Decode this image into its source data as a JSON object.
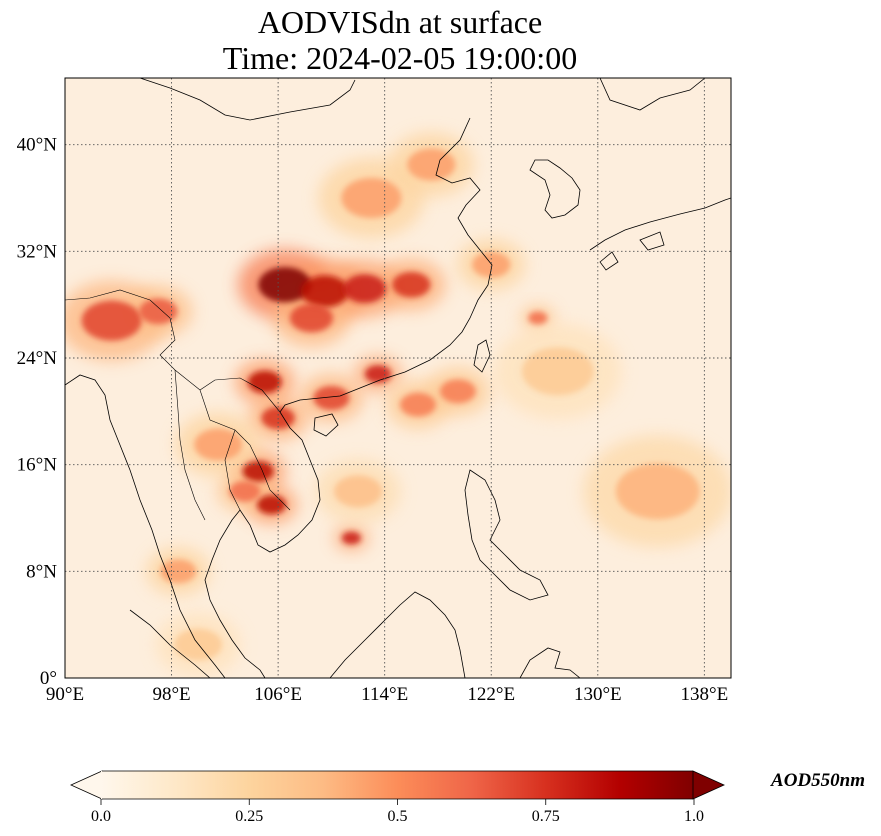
{
  "title": {
    "line1": "AODVISdn at surface",
    "line2": "Time: 2024-02-05 19:00:00"
  },
  "map": {
    "extent": {
      "lon_min": 90,
      "lon_max": 140,
      "lat_min": 0,
      "lat_max": 45
    },
    "lon_ticks": [
      90,
      98,
      106,
      114,
      122,
      130,
      138
    ],
    "lon_tick_labels": [
      "90°E",
      "98°E",
      "106°E",
      "114°E",
      "122°E",
      "130°E",
      "138°E"
    ],
    "lat_ticks": [
      0,
      8,
      16,
      24,
      32,
      40
    ],
    "lat_tick_labels": [
      "0°",
      "8°N",
      "16°N",
      "24°N",
      "32°N",
      "40°N"
    ],
    "gridlines": true,
    "colormap": "OrRd",
    "hotspots": [
      {
        "lon": 106.5,
        "lat": 29.5,
        "aod": 1.0,
        "r": 2.2
      },
      {
        "lon": 109.5,
        "lat": 29.0,
        "aod": 0.85,
        "r": 2.0
      },
      {
        "lon": 112.5,
        "lat": 29.2,
        "aod": 0.8,
        "r": 1.8
      },
      {
        "lon": 116.0,
        "lat": 29.5,
        "aod": 0.75,
        "r": 1.6
      },
      {
        "lon": 108.5,
        "lat": 27.0,
        "aod": 0.7,
        "r": 1.8
      },
      {
        "lon": 105.0,
        "lat": 22.2,
        "aod": 0.85,
        "r": 1.4
      },
      {
        "lon": 106.0,
        "lat": 19.5,
        "aod": 0.75,
        "r": 1.4
      },
      {
        "lon": 110.0,
        "lat": 21.0,
        "aod": 0.7,
        "r": 1.5
      },
      {
        "lon": 113.5,
        "lat": 22.8,
        "aod": 0.8,
        "r": 1.1
      },
      {
        "lon": 104.5,
        "lat": 15.5,
        "aod": 0.85,
        "r": 1.3
      },
      {
        "lon": 105.5,
        "lat": 13.0,
        "aod": 0.85,
        "r": 1.2
      },
      {
        "lon": 103.5,
        "lat": 14.0,
        "aod": 0.6,
        "r": 1.3
      },
      {
        "lon": 93.5,
        "lat": 26.8,
        "aod": 0.7,
        "r": 2.5
      },
      {
        "lon": 97.0,
        "lat": 27.5,
        "aod": 0.65,
        "r": 1.6
      },
      {
        "lon": 111.5,
        "lat": 10.5,
        "aod": 0.8,
        "r": 0.8
      },
      {
        "lon": 116.5,
        "lat": 20.5,
        "aod": 0.55,
        "r": 1.5
      },
      {
        "lon": 119.5,
        "lat": 21.5,
        "aod": 0.55,
        "r": 1.5
      },
      {
        "lon": 125.5,
        "lat": 27.0,
        "aod": 0.6,
        "r": 0.8
      },
      {
        "lon": 113.0,
        "lat": 36.0,
        "aod": 0.45,
        "r": 2.5
      },
      {
        "lon": 117.5,
        "lat": 38.5,
        "aod": 0.45,
        "r": 2.0
      },
      {
        "lon": 134.5,
        "lat": 14.0,
        "aod": 0.4,
        "r": 3.5
      },
      {
        "lon": 98.5,
        "lat": 8.0,
        "aod": 0.45,
        "r": 1.5
      },
      {
        "lon": 101.5,
        "lat": 17.5,
        "aod": 0.45,
        "r": 2.0
      },
      {
        "lon": 112.0,
        "lat": 14.0,
        "aod": 0.35,
        "r": 2.0
      },
      {
        "lon": 122.0,
        "lat": 31.0,
        "aod": 0.45,
        "r": 1.6
      },
      {
        "lon": 100.0,
        "lat": 2.5,
        "aod": 0.3,
        "r": 2.0
      },
      {
        "lon": 127.0,
        "lat": 23.0,
        "aod": 0.3,
        "r": 3.0
      }
    ]
  },
  "colorbar": {
    "min": 0.0,
    "max": 1.0,
    "ticks": [
      0.0,
      0.25,
      0.5,
      0.75,
      1.0
    ],
    "tick_labels": [
      "0.0",
      "0.25",
      "0.5",
      "0.75",
      "1.0"
    ],
    "label": "AOD550nm",
    "extend": "both"
  }
}
